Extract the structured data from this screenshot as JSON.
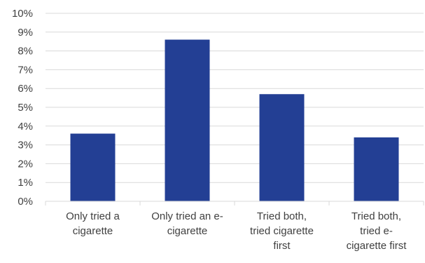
{
  "chart_data": {
    "type": "bar",
    "categories": [
      [
        "Only tried a",
        "cigarette"
      ],
      [
        "Only tried an e-",
        "cigarette"
      ],
      [
        "Tried both,",
        "tried cigarette",
        "first"
      ],
      [
        "Tried both,",
        "tried e-",
        "cigarette first"
      ]
    ],
    "values": [
      3.6,
      8.6,
      5.7,
      3.4
    ],
    "ylim": [
      0,
      10
    ],
    "yticks": [
      "0%",
      "1%",
      "2%",
      "3%",
      "4%",
      "5%",
      "6%",
      "7%",
      "8%",
      "9%",
      "10%"
    ],
    "grid": true,
    "colors": {
      "bar": "#233f94",
      "grid": "#d9d9d9",
      "text": "#404040"
    }
  }
}
